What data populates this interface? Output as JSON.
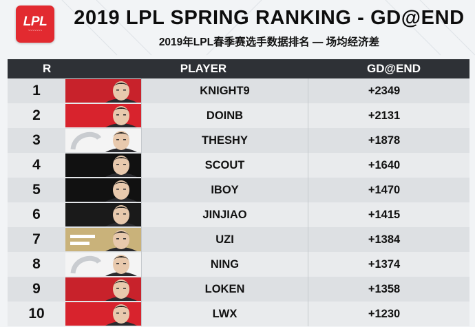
{
  "logo": {
    "text": "LPL"
  },
  "title": "2019 LPL SPRING RANKING - GD@END",
  "subtitle": "2019年LPL春季赛选手数据排名 — 场均经济差",
  "columns": {
    "rank": "R",
    "player": "PLAYER",
    "gd": "GD@END"
  },
  "rows": [
    {
      "rank": "1",
      "player": "KNIGHT9",
      "gd": "+2349",
      "team_style": "top"
    },
    {
      "rank": "2",
      "player": "DOINB",
      "gd": "+2131",
      "team_style": "fpx"
    },
    {
      "rank": "3",
      "player": "THESHY",
      "gd": "+1878",
      "team_style": "ig"
    },
    {
      "rank": "4",
      "player": "SCOUT",
      "gd": "+1640",
      "team_style": "edg"
    },
    {
      "rank": "5",
      "player": "IBOY",
      "gd": "+1470",
      "team_style": "edg"
    },
    {
      "rank": "6",
      "player": "JINJIAO",
      "gd": "+1415",
      "team_style": "blg"
    },
    {
      "rank": "7",
      "player": "UZI",
      "gd": "+1384",
      "team_style": "rng"
    },
    {
      "rank": "8",
      "player": "NING",
      "gd": "+1374",
      "team_style": "ig"
    },
    {
      "rank": "9",
      "player": "LOKEN",
      "gd": "+1358",
      "team_style": "top"
    },
    {
      "rank": "10",
      "player": "LWX",
      "gd": "+1230",
      "team_style": "fpx"
    }
  ],
  "colors": {
    "header_bg": "#2e3136",
    "logo_red": "#e22a30",
    "row_odd": "#dde0e3",
    "row_even": "#e9ebed"
  }
}
